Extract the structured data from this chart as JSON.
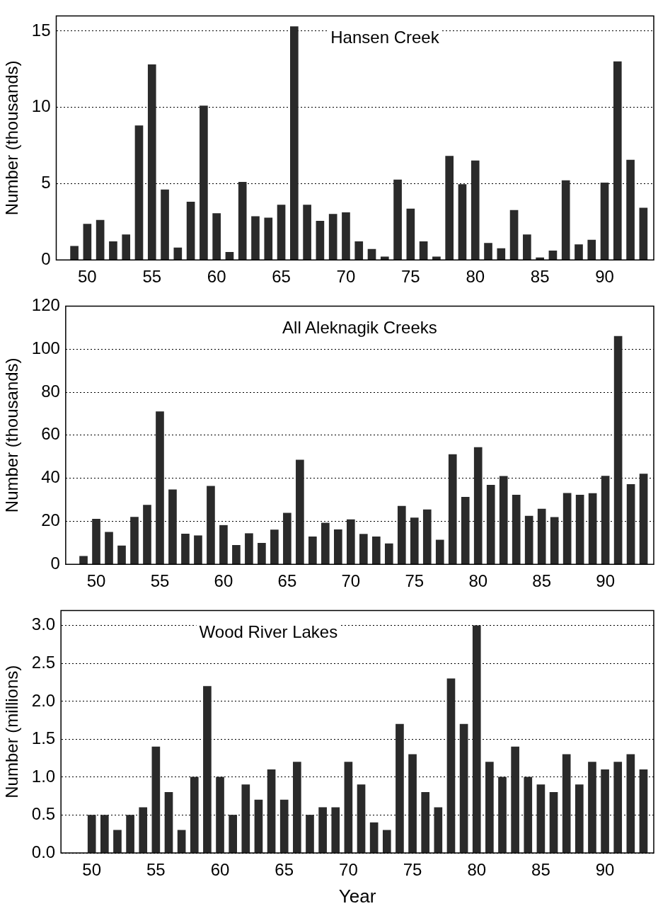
{
  "chart_data": [
    {
      "type": "bar",
      "title": "Hansen Creek",
      "ylabel": "Number (thousands)",
      "x": [
        49,
        50,
        51,
        52,
        53,
        54,
        55,
        56,
        57,
        58,
        59,
        60,
        61,
        62,
        63,
        64,
        65,
        66,
        67,
        68,
        69,
        70,
        71,
        72,
        73,
        74,
        75,
        76,
        77,
        78,
        79,
        80,
        81,
        82,
        83,
        84,
        85,
        86,
        87,
        88,
        89,
        90,
        91,
        92,
        93
      ],
      "values": [
        0.9,
        2.35,
        2.6,
        1.2,
        1.65,
        8.8,
        12.8,
        4.6,
        0.8,
        3.8,
        10.1,
        3.05,
        0.5,
        5.1,
        2.85,
        2.75,
        3.6,
        15.3,
        3.6,
        2.55,
        3.0,
        3.1,
        1.2,
        0.7,
        0.2,
        5.25,
        3.35,
        1.2,
        0.2,
        6.8,
        4.95,
        6.5,
        1.1,
        0.75,
        3.25,
        1.65,
        0.15,
        0.6,
        5.2,
        1.0,
        1.3,
        5.05,
        13.0,
        6.55,
        3.4
      ],
      "color": "#2a2a2a",
      "xlim": [
        47.6,
        93.8
      ],
      "xticks": [
        50,
        55,
        60,
        65,
        70,
        75,
        80,
        85,
        90
      ],
      "ylim": [
        0,
        16
      ],
      "yticks": [
        0,
        5,
        10,
        15
      ],
      "grid": "y"
    },
    {
      "type": "bar",
      "title": "All Aleknagik Creeks",
      "ylabel": "Number (thousands)",
      "x": [
        49,
        50,
        51,
        52,
        53,
        54,
        55,
        56,
        57,
        58,
        59,
        60,
        61,
        62,
        63,
        64,
        65,
        66,
        67,
        68,
        69,
        70,
        71,
        72,
        73,
        74,
        75,
        76,
        77,
        78,
        79,
        80,
        81,
        82,
        83,
        84,
        85,
        86,
        87,
        88,
        89,
        90,
        91,
        92,
        93
      ],
      "values": [
        3.7,
        21,
        14.9,
        8.6,
        21.9,
        27.5,
        70.9,
        34.7,
        14.1,
        13.3,
        36.3,
        18.1,
        8.8,
        14.3,
        9.8,
        16,
        23.8,
        48.5,
        12.8,
        19.2,
        16.1,
        20.8,
        14,
        12.8,
        9.6,
        27,
        21.6,
        25.4,
        11.3,
        51,
        31.2,
        54.3,
        36.8,
        40.9,
        32.2,
        22.4,
        25.7,
        21.8,
        33,
        32.2,
        32.9,
        41,
        106,
        37.1,
        42
      ],
      "color": "#2a2a2a",
      "xlim": [
        47.6,
        93.8
      ],
      "xticks": [
        50,
        55,
        60,
        65,
        70,
        75,
        80,
        85,
        90
      ],
      "ylim": [
        0,
        120
      ],
      "yticks": [
        0,
        20,
        40,
        60,
        80,
        100,
        120
      ],
      "grid": "y"
    },
    {
      "type": "bar",
      "title": "Wood River Lakes",
      "ylabel": "Number (millions)",
      "xlabel": "Year",
      "x": [
        50,
        51,
        52,
        53,
        54,
        55,
        56,
        57,
        58,
        59,
        60,
        61,
        62,
        63,
        64,
        65,
        66,
        67,
        68,
        69,
        70,
        71,
        72,
        73,
        74,
        75,
        76,
        77,
        78,
        79,
        80,
        81,
        82,
        83,
        84,
        85,
        86,
        87,
        88,
        89,
        90,
        91,
        92,
        93
      ],
      "values": [
        0.5,
        0.5,
        0.3,
        0.5,
        0.6,
        1.4,
        0.8,
        0.3,
        1.0,
        2.2,
        1.0,
        0.5,
        0.9,
        0.7,
        1.1,
        0.7,
        1.2,
        0.5,
        0.6,
        0.6,
        1.2,
        0.9,
        0.4,
        0.3,
        1.7,
        1.3,
        0.8,
        0.6,
        2.3,
        1.7,
        3.0,
        1.2,
        1.0,
        1.4,
        1.0,
        0.9,
        0.8,
        1.3,
        0.9,
        1.2,
        1.1,
        1.2,
        1.3,
        1.1
      ],
      "color": "#2a2a2a",
      "xlim": [
        47.6,
        93.8
      ],
      "xticks": [
        50,
        55,
        60,
        65,
        70,
        75,
        80,
        85,
        90
      ],
      "ylim": [
        0,
        3.2
      ],
      "yticks": [
        {
          "value": 0,
          "label": "0.0"
        },
        {
          "value": 0.5,
          "label": "0.5"
        },
        {
          "value": 1,
          "label": "1.0"
        },
        {
          "value": 1.5,
          "label": "1.5"
        },
        {
          "value": 2,
          "label": "2.0"
        },
        {
          "value": 2.5,
          "label": "2.5"
        },
        {
          "value": 3,
          "label": "3.0"
        }
      ],
      "grid": "y"
    }
  ]
}
